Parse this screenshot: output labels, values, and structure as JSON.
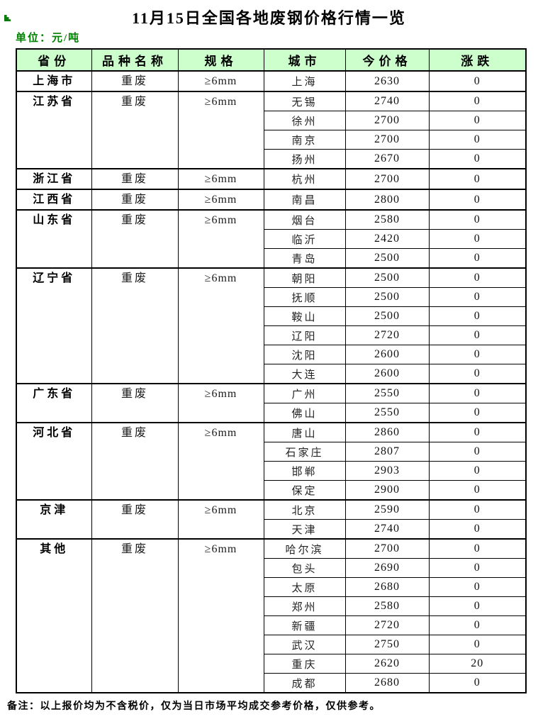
{
  "page": {
    "title": "11月15日全国各地废钢价格行情一览",
    "unit_label": "单位：元/吨",
    "footnote": "备注：以上报价均为不含税价，仅为当日市场平均成交参考价格，仅供参考。"
  },
  "colors": {
    "header_bg": "#CCFFCC",
    "unit_text_green": "#008000",
    "corner_marker_green": "#0a7a0a",
    "border": "#000000"
  },
  "table": {
    "headers": [
      "省份",
      "品种名称",
      "规格",
      "城市",
      "今价格",
      "涨跌"
    ],
    "groups": [
      {
        "province": "上海市",
        "variety": "重废",
        "spec": "≥6mm",
        "cities": [
          {
            "city": "上海",
            "price": "2630",
            "change": "0"
          }
        ]
      },
      {
        "province": "江苏省",
        "variety": "重废",
        "spec": "≥6mm",
        "cities": [
          {
            "city": "无锡",
            "price": "2740",
            "change": "0"
          },
          {
            "city": "徐州",
            "price": "2700",
            "change": "0"
          },
          {
            "city": "南京",
            "price": "2700",
            "change": "0"
          },
          {
            "city": "扬州",
            "price": "2670",
            "change": "0"
          }
        ]
      },
      {
        "province": "浙江省",
        "variety": "重废",
        "spec": "≥6mm",
        "cities": [
          {
            "city": "杭州",
            "price": "2700",
            "change": "0"
          }
        ]
      },
      {
        "province": "江西省",
        "variety": "重废",
        "spec": "≥6mm",
        "cities": [
          {
            "city": "南昌",
            "price": "2800",
            "change": "0"
          }
        ]
      },
      {
        "province": "山东省",
        "variety": "重废",
        "spec": "≥6mm",
        "cities": [
          {
            "city": "烟台",
            "price": "2580",
            "change": "0"
          },
          {
            "city": "临沂",
            "price": "2420",
            "change": "0"
          },
          {
            "city": "青岛",
            "price": "2500",
            "change": "0"
          }
        ]
      },
      {
        "province": "辽宁省",
        "variety": "重废",
        "spec": "≥6mm",
        "cities": [
          {
            "city": "朝阳",
            "price": "2500",
            "change": "0"
          },
          {
            "city": "抚顺",
            "price": "2500",
            "change": "0"
          },
          {
            "city": "鞍山",
            "price": "2500",
            "change": "0"
          },
          {
            "city": "辽阳",
            "price": "2720",
            "change": "0"
          },
          {
            "city": "沈阳",
            "price": "2600",
            "change": "0"
          },
          {
            "city": "大连",
            "price": "2600",
            "change": "0"
          }
        ]
      },
      {
        "province": "广东省",
        "variety": "重废",
        "spec": "≥6mm",
        "cities": [
          {
            "city": "广州",
            "price": "2550",
            "change": "0"
          },
          {
            "city": "佛山",
            "price": "2550",
            "change": "0"
          }
        ]
      },
      {
        "province": "河北省",
        "variety": "重废",
        "spec": "≥6mm",
        "cities": [
          {
            "city": "唐山",
            "price": "2860",
            "change": "0"
          },
          {
            "city": "石家庄",
            "price": "2807",
            "change": "0"
          },
          {
            "city": "邯郸",
            "price": "2903",
            "change": "0"
          },
          {
            "city": "保定",
            "price": "2900",
            "change": "0"
          }
        ]
      },
      {
        "province": "京津",
        "variety": "重废",
        "spec": "≥6mm",
        "cities": [
          {
            "city": "北京",
            "price": "2590",
            "change": "0"
          },
          {
            "city": "天津",
            "price": "2740",
            "change": "0"
          }
        ]
      },
      {
        "province": "其他",
        "variety": "重废",
        "spec": "≥6mm",
        "cities": [
          {
            "city": "哈尔滨",
            "price": "2700",
            "change": "0"
          },
          {
            "city": "包头",
            "price": "2690",
            "change": "0"
          },
          {
            "city": "太原",
            "price": "2680",
            "change": "0"
          },
          {
            "city": "郑州",
            "price": "2580",
            "change": "0"
          },
          {
            "city": "新疆",
            "price": "2720",
            "change": "0"
          },
          {
            "city": "武汉",
            "price": "2750",
            "change": "0"
          },
          {
            "city": "重庆",
            "price": "2620",
            "change": "20"
          },
          {
            "city": "成都",
            "price": "2680",
            "change": "0"
          }
        ]
      }
    ]
  }
}
